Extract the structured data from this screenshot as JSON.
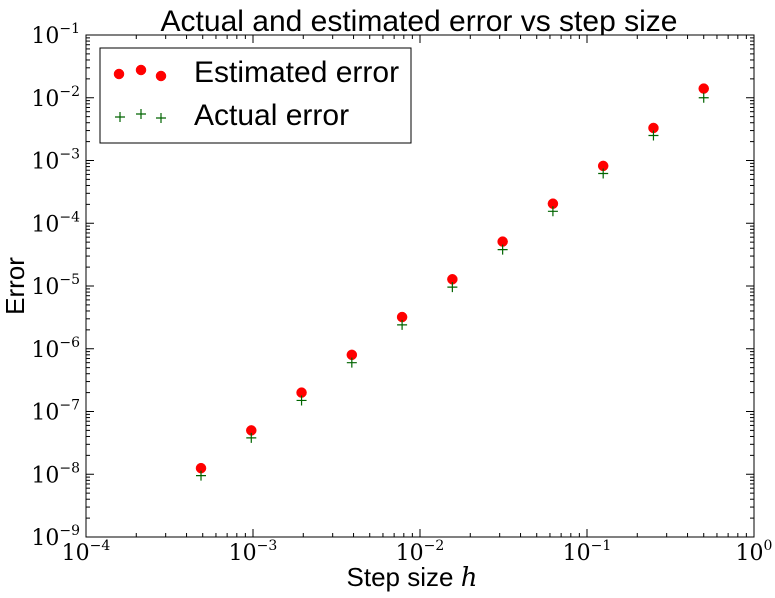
{
  "chart_data": {
    "type": "scatter",
    "title": "Actual and estimated error vs step size",
    "xlabel": "Step size",
    "xlabel_math": "h",
    "ylabel": "Error",
    "xscale": "log",
    "yscale": "log",
    "xlim": [
      0.0001,
      1
    ],
    "ylim": [
      1e-09,
      0.1
    ],
    "x_ticks": [
      {
        "base": "10",
        "exp": "−4"
      },
      {
        "base": "10",
        "exp": "−3"
      },
      {
        "base": "10",
        "exp": "−2"
      },
      {
        "base": "10",
        "exp": "−1"
      },
      {
        "base": "10",
        "exp": "0"
      }
    ],
    "y_ticks": [
      {
        "base": "10",
        "exp": "−9"
      },
      {
        "base": "10",
        "exp": "−8"
      },
      {
        "base": "10",
        "exp": "−7"
      },
      {
        "base": "10",
        "exp": "−6"
      },
      {
        "base": "10",
        "exp": "−5"
      },
      {
        "base": "10",
        "exp": "−4"
      },
      {
        "base": "10",
        "exp": "−3"
      },
      {
        "base": "10",
        "exp": "−2"
      },
      {
        "base": "10",
        "exp": "−1"
      }
    ],
    "legend_position": "top-left",
    "grid": false,
    "x": [
      0.00048828125,
      0.0009765625,
      0.001953125,
      0.00390625,
      0.0078125,
      0.015625,
      0.03125,
      0.0625,
      0.125,
      0.25,
      0.5
    ],
    "series": [
      {
        "name": "Estimated error",
        "marker": "circle",
        "color": "#ff0000",
        "values": [
          1.25e-08,
          5e-08,
          2e-07,
          8e-07,
          3.2e-06,
          1.28e-05,
          5.1e-05,
          0.000205,
          0.00082,
          0.0033,
          0.014
        ]
      },
      {
        "name": "Actual error",
        "marker": "plus",
        "color": "#006400",
        "values": [
          9.5e-09,
          3.8e-08,
          1.5e-07,
          6e-07,
          2.4e-06,
          9.6e-06,
          3.8e-05,
          0.000155,
          0.00062,
          0.0025,
          0.01
        ]
      }
    ]
  }
}
